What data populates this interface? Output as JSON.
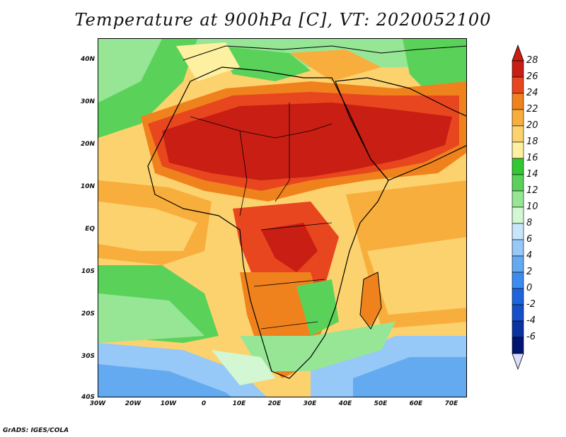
{
  "title": "Temperature at 900hPa [C], VT: 2020052100",
  "credit": "GrADS: IGES/COLA",
  "lat_labels": [
    "40N",
    "30N",
    "20N",
    "10N",
    "EQ",
    "10S",
    "20S",
    "30S",
    "40S"
  ],
  "lon_labels": [
    "30W",
    "20W",
    "10W",
    "0",
    "10E",
    "20E",
    "30E",
    "40E",
    "50E",
    "60E",
    "70E"
  ],
  "colorbar": {
    "labels": [
      "28",
      "26",
      "24",
      "22",
      "20",
      "18",
      "16",
      "14",
      "12",
      "10",
      "8",
      "6",
      "4",
      "2",
      "0",
      "-2",
      "-4",
      "-6"
    ],
    "colors": [
      "#c81e14",
      "#e8461e",
      "#f0821e",
      "#f8ae3c",
      "#fcd26e",
      "#fdf0a0",
      "#32c832",
      "#5ad25a",
      "#96e696",
      "#d2f7d2",
      "#c8e6fa",
      "#96c8f8",
      "#64aaf0",
      "#3c8cf0",
      "#1e64dc",
      "#1450c8",
      "#0a32a0",
      "#001470"
    ]
  },
  "map_colors": {
    "hot": "#c81e14",
    "warm": "#e8461e",
    "orange": "#f0821e",
    "lightorange": "#f8ae3c",
    "yellow": "#fcd26e",
    "paleyellow": "#fdf0a0",
    "green": "#5ad25a",
    "lightgreen": "#96e696",
    "cyan": "#d2f7d2",
    "lightblue": "#96c8f8",
    "blue": "#64aaf0"
  }
}
